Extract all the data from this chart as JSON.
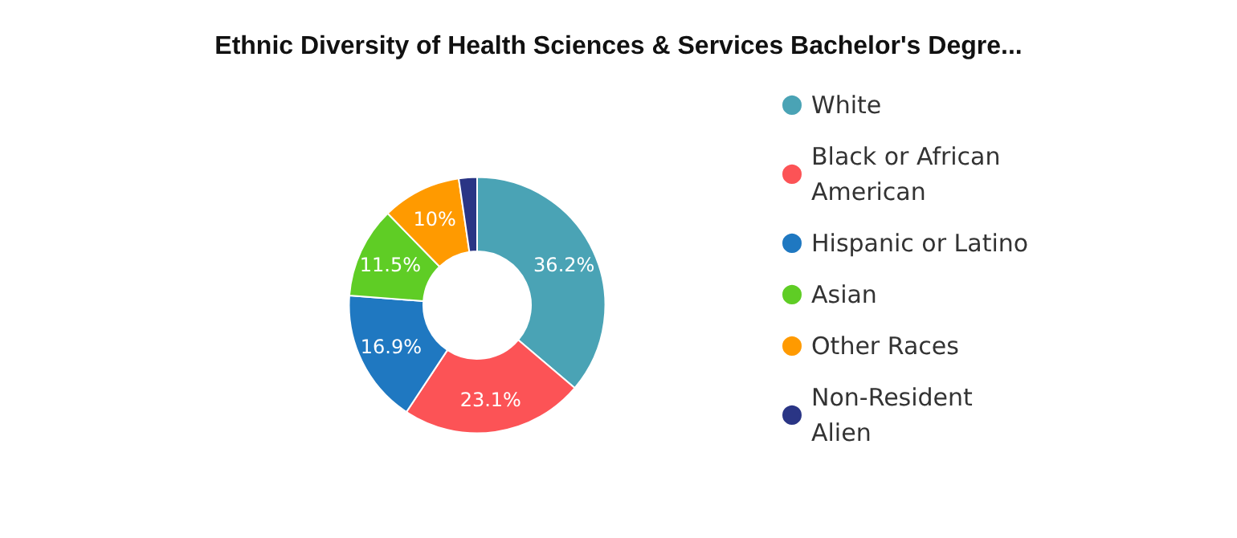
{
  "chart_data": {
    "type": "donut",
    "title": "Ethnic Diversity of Health Sciences & Services Bachelor's Degre...",
    "categories": [
      "White",
      "Black or African American",
      "Hispanic or Latino",
      "Asian",
      "Other Races",
      "Non-Resident Alien"
    ],
    "values": [
      36.2,
      23.1,
      16.9,
      11.5,
      10,
      2.3
    ],
    "colors": [
      "#4aa3b5",
      "#fc5356",
      "#1f78c1",
      "#5fcd25",
      "#ff9a00",
      "#2a3585"
    ],
    "value_labels": [
      "36.2%",
      "23.1%",
      "16.9%",
      "11.5%",
      "10%",
      null
    ],
    "legend": "right"
  }
}
